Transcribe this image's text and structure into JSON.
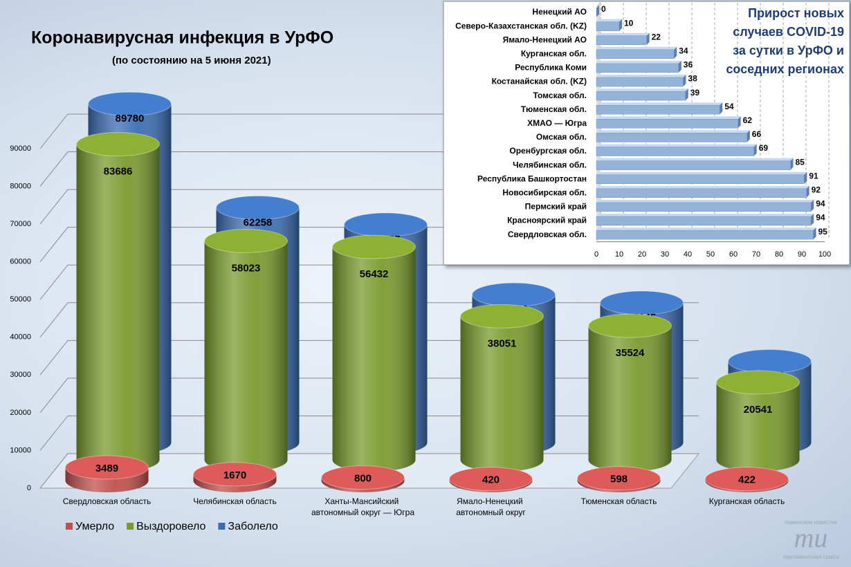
{
  "chart_data": [
    {
      "type": "cylinder",
      "title": "Коронавирусная инфекция в УрФО",
      "subtitle": "(по состоянию на 5 июня 2021)",
      "categories": [
        "Свердловская область",
        "Челябинская область",
        "Ханты-Мансийский автономный округ — Югра",
        "Ямало-Ненецкий автономный округ",
        "Тюменская область",
        "Курганская область"
      ],
      "series": [
        {
          "name": "Умерло",
          "color": "#c0504d",
          "values": [
            3489,
            1670,
            800,
            420,
            598,
            422
          ]
        },
        {
          "name": "Выздоровело",
          "color": "#7a9a2e",
          "values": [
            83686,
            58023,
            56432,
            38051,
            35524,
            20541
          ]
        },
        {
          "name": "Заболело",
          "color": "#3c6db4",
          "values": [
            89780,
            62258,
            57757,
            39210,
            37045,
            21535
          ]
        }
      ],
      "ylim": [
        0,
        90000
      ],
      "yticks": [
        0,
        10000,
        20000,
        30000,
        40000,
        50000,
        60000,
        70000,
        80000,
        90000
      ],
      "grid": true,
      "legend": "bottom-left"
    },
    {
      "type": "hbar",
      "title": "Прирост новых случаев COVID-19 за сутки в УрФО и соседних регионах",
      "categories": [
        "Ненецкий АО",
        "Северо-Казахстанская обл. (KZ)",
        "Ямало-Ненецкий АО",
        "Курганская обл.",
        "Республика Коми",
        "Костанайская обл. (KZ)",
        "Томская обл.",
        "Тюменская обл.",
        "ХМАО — Югра",
        "Омская обл.",
        "Оренбургская обл.",
        "Челябинская обл.",
        "Республика Башкортостан",
        "Новосибирская обл.",
        "Пермский край",
        "Красноярский край",
        "Свердловская обл."
      ],
      "values": [
        0,
        10,
        22,
        34,
        36,
        38,
        39,
        54,
        62,
        66,
        69,
        85,
        91,
        92,
        94,
        94,
        95
      ],
      "color": "#95b3d7",
      "xlim": [
        0,
        100
      ],
      "xticks": [
        0,
        10,
        20,
        30,
        40,
        50,
        60,
        70,
        80,
        90,
        100
      ],
      "grid": true
    }
  ],
  "watermark": {
    "top": "тюменские известия",
    "mark": "ти",
    "bottom": "парламентская газета"
  }
}
